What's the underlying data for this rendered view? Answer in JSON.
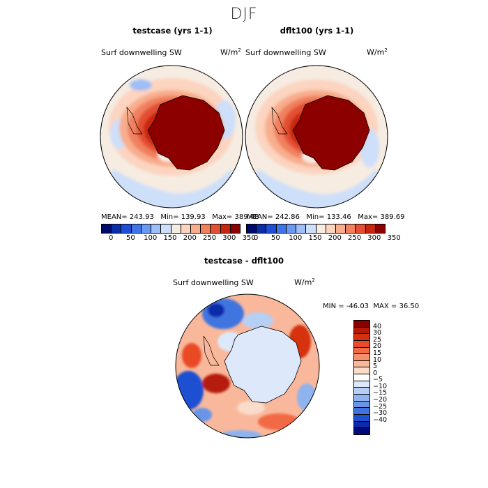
{
  "page": {
    "title": "DJF"
  },
  "panels": [
    {
      "title": "testcase (yrs 1-1)",
      "variable": "Surf downwelling SW",
      "units": "W/m",
      "units_sup": "2",
      "stats": {
        "mean_label": "MEAN=",
        "mean": "243.93",
        "min_label": "Min=",
        "min": "139.93",
        "max_label": "Max=",
        "max": "389.48"
      }
    },
    {
      "title": "dflt100 (yrs 1-1)",
      "variable": "Surf downwelling SW",
      "units": "W/m",
      "units_sup": "2",
      "stats": {
        "mean_label": "MEAN=",
        "mean": "242.86",
        "min_label": "Min=",
        "min": "133.46",
        "max_label": "Max=",
        "max": "389.69"
      }
    }
  ],
  "colorbar": {
    "ticks": [
      "0",
      "50",
      "100",
      "150",
      "200",
      "250",
      "300",
      "350"
    ],
    "colors": [
      "#000a6b",
      "#0a2ca8",
      "#1f4ed6",
      "#3f74ea",
      "#6b98f2",
      "#9fbdf6",
      "#cddff9",
      "#f6ece2",
      "#fcd4bf",
      "#f8ad8c",
      "#f0805e",
      "#e34f32",
      "#c8250f",
      "#8c0000"
    ]
  },
  "diff": {
    "title": "testcase - dflt100",
    "variable": "Surf downwelling SW",
    "units": "W/m",
    "units_sup": "2",
    "stats": {
      "min_label": "MIN =",
      "min": "-46.03",
      "max_label": "MAX =",
      "max": "36.50"
    },
    "legend": {
      "labels": [
        "40",
        "30",
        "25",
        "20",
        "15",
        "10",
        "5",
        "0",
        "−5",
        "−10",
        "−15",
        "−20",
        "−25",
        "−30",
        "−40"
      ],
      "colors": [
        "#8c0000",
        "#b51a07",
        "#d6300f",
        "#ea4a25",
        "#f26a45",
        "#f6906c",
        "#f9b89b",
        "#fbdcca",
        "#ffffff",
        "#dde9fb",
        "#b6cff5",
        "#8fb3ef",
        "#6895e8",
        "#3f74e0",
        "#1f50d2",
        "#0a2cab",
        "#000a78"
      ]
    }
  }
}
